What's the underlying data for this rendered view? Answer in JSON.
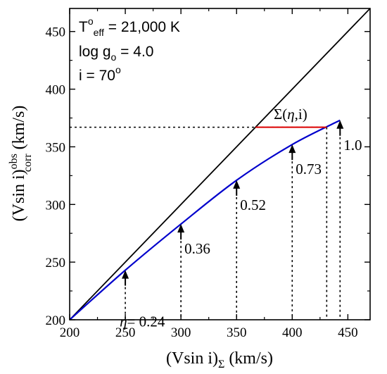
{
  "chart_data": {
    "type": "line",
    "title": "",
    "xlabel": "(Vsin i)",
    "xlabel_subscript": "Σ",
    "xlabel_unit": " (km/s)",
    "ylabel": "(Vsin i)",
    "ylabel_superscript": "obs",
    "ylabel_subscript": "corr",
    "ylabel_unit": " (km/s)",
    "xlim": [
      200,
      470
    ],
    "ylim": [
      200,
      470
    ],
    "xticks": [
      200,
      250,
      300,
      350,
      400,
      450
    ],
    "yticks": [
      200,
      250,
      300,
      350,
      400,
      450
    ],
    "grid": false,
    "colors": {
      "identity": "#000000",
      "curve": "#0000cc",
      "sigma": "#dd0000",
      "dotted": "#000000"
    },
    "params": {
      "teff": {
        "main": "T",
        "sup": "o",
        "sub": "eff",
        "rest": " = 21,000 K"
      },
      "logg": {
        "main": "log g",
        "sub": "o",
        "rest": " = 4.0"
      },
      "incl": {
        "main": "i = 70",
        "sup": "o"
      }
    },
    "series": [
      {
        "key": "identity",
        "x": [
          200,
          470
        ],
        "y": [
          200,
          470
        ]
      },
      {
        "key": "curve",
        "x": [
          200,
          250,
          300,
          350,
          400,
          443
        ],
        "y": [
          200,
          243,
          283,
          321,
          352,
          373
        ]
      }
    ],
    "sigma_segment": {
      "x": [
        367,
        431
      ],
      "y": 367,
      "label_main": "Σ(",
      "label_eta": "η",
      "label_rest": ",i)"
    },
    "horizontal_dotted": {
      "y": 367,
      "x_from": 200,
      "x_to": 431
    },
    "vertical_dotted": [
      431
    ],
    "eta_markers": [
      {
        "x": 250,
        "y": 243,
        "label": "= 0.24",
        "prefix": "η"
      },
      {
        "x": 300,
        "y": 283,
        "label": "0.36"
      },
      {
        "x": 350,
        "y": 321,
        "label": "0.52"
      },
      {
        "x": 400,
        "y": 352,
        "label": "0.73"
      },
      {
        "x": 443,
        "y": 373,
        "label": "1.0"
      }
    ]
  }
}
